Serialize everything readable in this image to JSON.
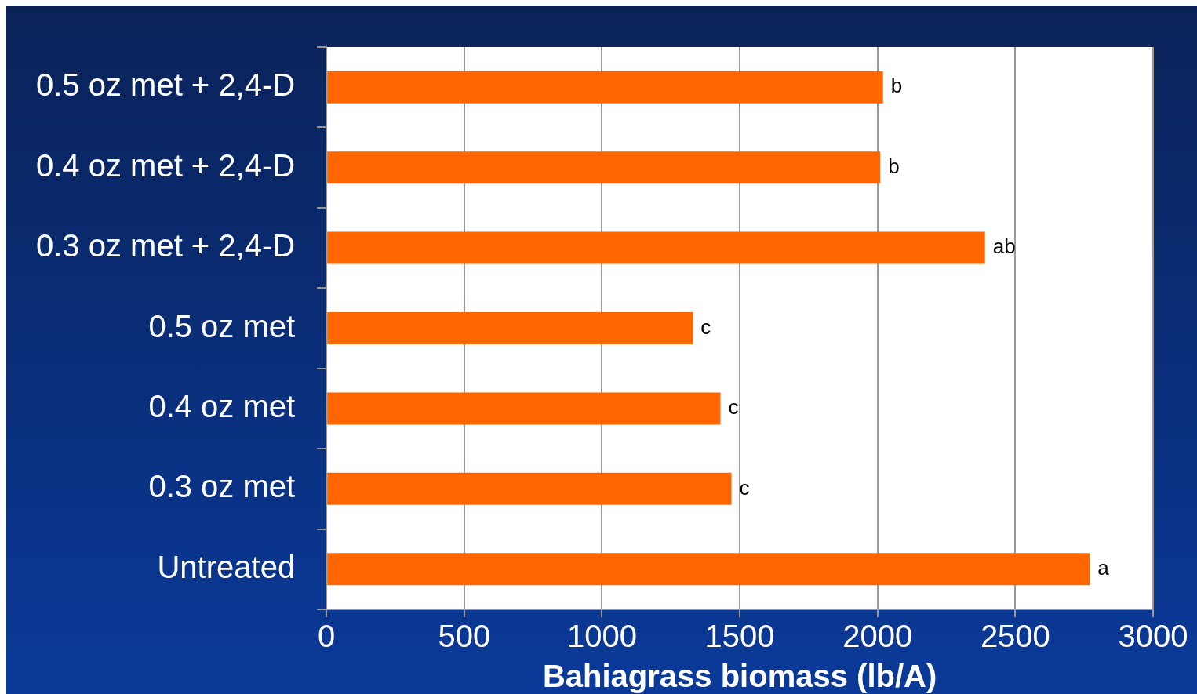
{
  "chart_data": {
    "type": "bar",
    "orientation": "horizontal",
    "xlabel": "Bahiagrass biomass (lb/A)",
    "categories": [
      "0.5 oz met + 2,4-D",
      "0.4 oz met + 2,4-D",
      "0.3 oz met + 2,4-D",
      "0.5 oz met",
      "0.4 oz met",
      "0.3 oz met",
      "Untreated"
    ],
    "values": [
      2020,
      2010,
      2390,
      1330,
      1430,
      1470,
      2770
    ],
    "value_labels": [
      "b",
      "b",
      "ab",
      "c",
      "c",
      "c",
      "a"
    ],
    "color": "#ff6600",
    "xlim": [
      0,
      3000
    ],
    "xticks": [
      0,
      500,
      1000,
      1500,
      2000,
      2500,
      3000
    ],
    "grid": "x",
    "legend": false
  }
}
